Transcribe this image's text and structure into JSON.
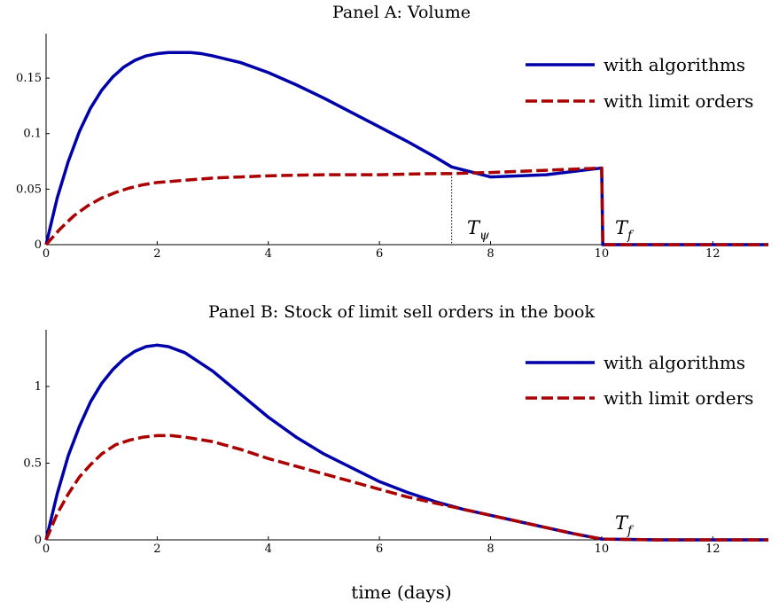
{
  "figure": {
    "xlabel": "time (days)"
  },
  "chart_data": [
    {
      "type": "line",
      "title": "Panel A: Volume",
      "xlim": [
        0,
        13
      ],
      "ylim": [
        0,
        0.19
      ],
      "xticks": [
        0,
        2,
        4,
        6,
        8,
        10,
        12
      ],
      "xtick_labels": [
        "0",
        "2",
        "4",
        "6",
        "8",
        "10",
        "12"
      ],
      "yticks": [
        0,
        0.05,
        0.1,
        0.15
      ],
      "ytick_labels": [
        "0",
        "0.05",
        "0.1",
        "0.15"
      ],
      "legend_position": "top-right",
      "series": [
        {
          "name": "with algorithms",
          "color": "#0000aa",
          "style": "solid",
          "x": [
            0,
            0.2,
            0.4,
            0.6,
            0.8,
            1.0,
            1.2,
            1.4,
            1.6,
            1.8,
            2.0,
            2.2,
            2.4,
            2.6,
            2.8,
            3.0,
            3.5,
            4.0,
            4.5,
            5.0,
            5.5,
            6.0,
            6.5,
            7.0,
            7.3,
            8.0,
            9.0,
            10.0,
            10.02,
            11.0,
            12.0,
            13.0
          ],
          "y": [
            0,
            0.042,
            0.075,
            0.102,
            0.123,
            0.139,
            0.151,
            0.16,
            0.166,
            0.17,
            0.172,
            0.173,
            0.173,
            0.173,
            0.172,
            0.17,
            0.164,
            0.155,
            0.144,
            0.132,
            0.119,
            0.106,
            0.093,
            0.079,
            0.07,
            0.061,
            0.063,
            0.069,
            0,
            0,
            0,
            0
          ]
        },
        {
          "name": "with limit orders",
          "color": "#aa0000",
          "style": "dashed",
          "x": [
            0,
            0.25,
            0.5,
            0.75,
            1.0,
            1.25,
            1.5,
            1.75,
            2.0,
            2.5,
            3.0,
            3.5,
            4.0,
            5.0,
            6.0,
            7.0,
            7.3,
            8.0,
            9.0,
            10.0,
            10.02,
            11.0,
            12.0,
            13.0
          ],
          "y": [
            0,
            0.014,
            0.026,
            0.035,
            0.042,
            0.047,
            0.051,
            0.054,
            0.056,
            0.058,
            0.06,
            0.061,
            0.062,
            0.063,
            0.063,
            0.064,
            0.064,
            0.065,
            0.067,
            0.069,
            0,
            0,
            0,
            0
          ]
        }
      ],
      "annotations": [
        {
          "base": "T",
          "sub": "ψ",
          "x": 7.3,
          "line": "dotted"
        },
        {
          "base": "T",
          "sub": "f",
          "x": 10.0
        }
      ]
    },
    {
      "type": "line",
      "title": "Panel B: Stock of limit sell orders in the book",
      "xlim": [
        0,
        13
      ],
      "ylim": [
        0,
        1.37
      ],
      "xticks": [
        0,
        2,
        4,
        6,
        8,
        10,
        12
      ],
      "xtick_labels": [
        "0",
        "2",
        "4",
        "6",
        "8",
        "10",
        "12"
      ],
      "yticks": [
        0,
        0.5,
        1
      ],
      "ytick_labels": [
        "0",
        "0.5",
        "1"
      ],
      "legend_position": "top-right",
      "series": [
        {
          "name": "with algorithms",
          "color": "#0000aa",
          "style": "solid",
          "x": [
            0,
            0.2,
            0.4,
            0.6,
            0.8,
            1.0,
            1.2,
            1.4,
            1.6,
            1.8,
            2.0,
            2.2,
            2.5,
            3.0,
            3.5,
            4.0,
            4.5,
            5.0,
            5.5,
            6.0,
            6.5,
            7.0,
            7.5,
            8.0,
            8.5,
            9.0,
            9.5,
            10.0,
            11.0,
            12.0,
            13.0
          ],
          "y": [
            0,
            0.3,
            0.55,
            0.74,
            0.9,
            1.02,
            1.11,
            1.18,
            1.23,
            1.26,
            1.27,
            1.26,
            1.22,
            1.1,
            0.95,
            0.8,
            0.67,
            0.56,
            0.47,
            0.38,
            0.31,
            0.25,
            0.2,
            0.16,
            0.12,
            0.08,
            0.04,
            0.005,
            0,
            0,
            0
          ]
        },
        {
          "name": "with limit orders",
          "color": "#aa0000",
          "style": "dashed",
          "x": [
            0,
            0.2,
            0.4,
            0.6,
            0.8,
            1.0,
            1.25,
            1.5,
            1.75,
            2.0,
            2.25,
            2.5,
            3.0,
            3.5,
            4.0,
            4.5,
            5.0,
            5.5,
            6.0,
            6.5,
            7.0,
            7.5,
            8.0,
            8.5,
            9.0,
            9.5,
            10.0,
            11.0,
            12.0,
            13.0
          ],
          "y": [
            0,
            0.17,
            0.3,
            0.41,
            0.49,
            0.56,
            0.62,
            0.65,
            0.67,
            0.68,
            0.68,
            0.67,
            0.64,
            0.59,
            0.53,
            0.48,
            0.43,
            0.38,
            0.33,
            0.28,
            0.24,
            0.2,
            0.16,
            0.12,
            0.08,
            0.04,
            0.005,
            0,
            0,
            0
          ]
        }
      ],
      "annotations": [
        {
          "base": "T",
          "sub": "f",
          "x": 10.0
        }
      ]
    }
  ]
}
